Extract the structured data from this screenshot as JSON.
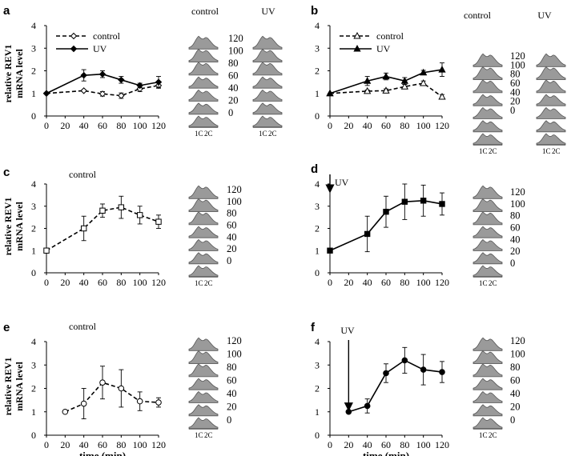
{
  "figure": {
    "y_axis_label_line1": "relative REV1",
    "y_axis_label_line2": "mRNA level",
    "x_axis_label": "time (min)",
    "histogram_times": [
      "120",
      "100",
      "80",
      "60",
      "40",
      "20",
      "0"
    ],
    "ploidy_labels": [
      "1C",
      "2C"
    ]
  },
  "chart_data": [
    {
      "panel": "a",
      "type": "line",
      "x": [
        0,
        20,
        40,
        60,
        80,
        100,
        120
      ],
      "xlim": [
        0,
        120
      ],
      "ylim": [
        0,
        4
      ],
      "series": [
        {
          "name": "control",
          "style": "dashed",
          "marker": "open-diamond",
          "x": [
            0,
            40,
            60,
            80,
            100,
            120
          ],
          "y": [
            1.0,
            1.12,
            0.98,
            0.9,
            1.2,
            1.35
          ],
          "err": [
            0,
            0.04,
            0.1,
            0.12,
            0.12,
            0.12
          ]
        },
        {
          "name": "UV",
          "style": "solid",
          "marker": "filled-diamond",
          "x": [
            0,
            40,
            60,
            80,
            100,
            120
          ],
          "y": [
            1.0,
            1.8,
            1.85,
            1.6,
            1.35,
            1.5
          ],
          "err": [
            0,
            0.25,
            0.15,
            0.15,
            0.1,
            0.25
          ]
        }
      ],
      "x_ticks": [
        0,
        20,
        40,
        60,
        80,
        100,
        120
      ],
      "y_ticks": [
        0,
        1,
        2,
        3,
        4
      ],
      "histogram_columns": [
        "control",
        "UV"
      ]
    },
    {
      "panel": "b",
      "type": "line",
      "x": [
        0,
        20,
        40,
        60,
        80,
        100,
        120
      ],
      "xlim": [
        0,
        120
      ],
      "ylim": [
        0,
        4
      ],
      "series": [
        {
          "name": "control",
          "style": "dashed",
          "marker": "open-triangle",
          "x": [
            0,
            40,
            60,
            80,
            100,
            120
          ],
          "y": [
            1.0,
            1.1,
            1.12,
            1.3,
            1.45,
            0.85
          ],
          "err": [
            0,
            0.05,
            0.08,
            0.1,
            0.1,
            0.1
          ]
        },
        {
          "name": "UV",
          "style": "solid",
          "marker": "filled-triangle",
          "x": [
            0,
            40,
            60,
            80,
            100,
            120
          ],
          "y": [
            1.0,
            1.55,
            1.75,
            1.55,
            1.92,
            2.05
          ],
          "err": [
            0,
            0.2,
            0.15,
            0.15,
            0.1,
            0.3
          ]
        }
      ],
      "x_ticks": [
        0,
        20,
        40,
        60,
        80,
        100,
        120
      ],
      "y_ticks": [
        0,
        1,
        2,
        3,
        4
      ],
      "histogram_columns": [
        "control",
        "UV"
      ]
    },
    {
      "panel": "c",
      "type": "line",
      "x": [
        0,
        20,
        40,
        60,
        80,
        100,
        120
      ],
      "xlim": [
        0,
        120
      ],
      "ylim": [
        0,
        4
      ],
      "annotation": "control",
      "series": [
        {
          "style": "dashed",
          "marker": "open-square",
          "x": [
            0,
            40,
            60,
            80,
            100,
            120
          ],
          "y": [
            1.0,
            2.0,
            2.8,
            2.95,
            2.6,
            2.3
          ],
          "err": [
            0,
            0.55,
            0.3,
            0.5,
            0.4,
            0.3
          ]
        }
      ],
      "x_ticks": [
        0,
        20,
        40,
        60,
        80,
        100,
        120
      ],
      "y_ticks": [
        0,
        1,
        2,
        3,
        4
      ]
    },
    {
      "panel": "d",
      "type": "line",
      "x": [
        0,
        20,
        40,
        60,
        80,
        100,
        120
      ],
      "xlim": [
        0,
        120
      ],
      "ylim": [
        0,
        4
      ],
      "annotation": "UV",
      "arrow_at_x": 0,
      "series": [
        {
          "style": "solid",
          "marker": "filled-square",
          "x": [
            0,
            40,
            60,
            80,
            100,
            120
          ],
          "y": [
            1.0,
            1.75,
            2.75,
            3.2,
            3.25,
            3.1
          ],
          "err": [
            0,
            0.8,
            0.7,
            0.8,
            0.7,
            0.5
          ]
        }
      ],
      "x_ticks": [
        0,
        20,
        40,
        60,
        80,
        100,
        120
      ],
      "y_ticks": [
        0,
        1,
        2,
        3,
        4
      ]
    },
    {
      "panel": "e",
      "type": "line",
      "x": [
        0,
        20,
        40,
        60,
        80,
        100,
        120
      ],
      "xlim": [
        0,
        120
      ],
      "ylim": [
        0,
        4
      ],
      "annotation": "control",
      "series": [
        {
          "style": "dashed",
          "marker": "open-circle",
          "x": [
            20,
            40,
            60,
            80,
            100,
            120
          ],
          "y": [
            1.0,
            1.35,
            2.25,
            2.0,
            1.45,
            1.4
          ],
          "err": [
            0,
            0.65,
            0.7,
            0.8,
            0.4,
            0.2
          ]
        }
      ],
      "x_ticks": [
        0,
        20,
        40,
        60,
        80,
        100,
        120
      ],
      "y_ticks": [
        0,
        1,
        2,
        3,
        4
      ],
      "xlabel": "time (min)"
    },
    {
      "panel": "f",
      "type": "line",
      "x": [
        0,
        20,
        40,
        60,
        80,
        100,
        120
      ],
      "xlim": [
        0,
        120
      ],
      "ylim": [
        0,
        4
      ],
      "annotation": "UV",
      "arrow_at_x": 20,
      "series": [
        {
          "style": "solid",
          "marker": "filled-circle",
          "x": [
            20,
            40,
            60,
            80,
            100,
            120
          ],
          "y": [
            1.0,
            1.25,
            2.65,
            3.2,
            2.8,
            2.7
          ],
          "err": [
            0,
            0.3,
            0.4,
            0.55,
            0.65,
            0.45
          ]
        }
      ],
      "x_ticks": [
        0,
        20,
        40,
        60,
        80,
        100,
        120
      ],
      "y_ticks": [
        0,
        1,
        2,
        3,
        4
      ],
      "xlabel": "time (min)"
    }
  ]
}
